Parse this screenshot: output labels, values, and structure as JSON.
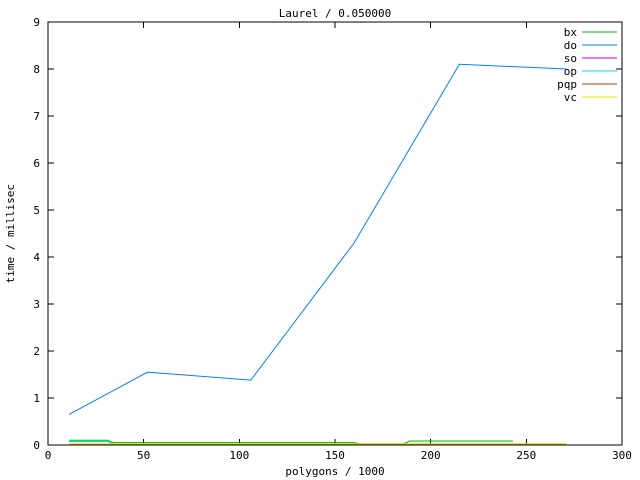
{
  "chart_data": {
    "type": "line",
    "title": "Laurel / 0.050000",
    "xlabel": "polygons / 1000",
    "ylabel": "time / millisec",
    "xlim": [
      0,
      300
    ],
    "ylim": [
      0,
      9
    ],
    "xticks": [
      0,
      50,
      100,
      150,
      200,
      250,
      300
    ],
    "yticks": [
      0,
      1,
      2,
      3,
      4,
      5,
      6,
      7,
      8,
      9
    ],
    "grid": false,
    "legend_position": "top-right-inside",
    "background": "#ffffff",
    "axis_color": "#000000",
    "series": [
      {
        "name": "bx",
        "color": "#00b400",
        "points": [
          [
            11,
            0.1
          ],
          [
            31,
            0.1
          ],
          [
            34,
            0.05
          ],
          [
            160,
            0.05
          ],
          [
            163,
            0.025
          ],
          [
            186,
            0.025
          ],
          [
            189,
            0.085
          ],
          [
            243,
            0.085
          ]
        ]
      },
      {
        "name": "do",
        "color": "#0080ff",
        "points": [
          [
            11,
            0.65
          ],
          [
            52,
            1.55
          ],
          [
            106,
            1.38
          ],
          [
            160,
            4.3
          ],
          [
            215,
            8.1
          ],
          [
            271,
            8.0
          ]
        ]
      },
      {
        "name": "so",
        "color": "#c000ff",
        "points": [
          [
            11,
            0.02
          ],
          [
            271,
            0.02
          ]
        ]
      },
      {
        "name": "op",
        "color": "#00e0e0",
        "points": [
          [
            11,
            0.075
          ],
          [
            31,
            0.075
          ],
          [
            34,
            0.025
          ],
          [
            271,
            0.025
          ]
        ]
      },
      {
        "name": "pqp",
        "color": "#b04200",
        "points": [
          [
            11,
            0.02
          ],
          [
            271,
            0.02
          ]
        ]
      },
      {
        "name": "vc",
        "color": "#e6e600",
        "points": [
          [
            11,
            0.025
          ],
          [
            271,
            0.025
          ]
        ]
      }
    ]
  }
}
